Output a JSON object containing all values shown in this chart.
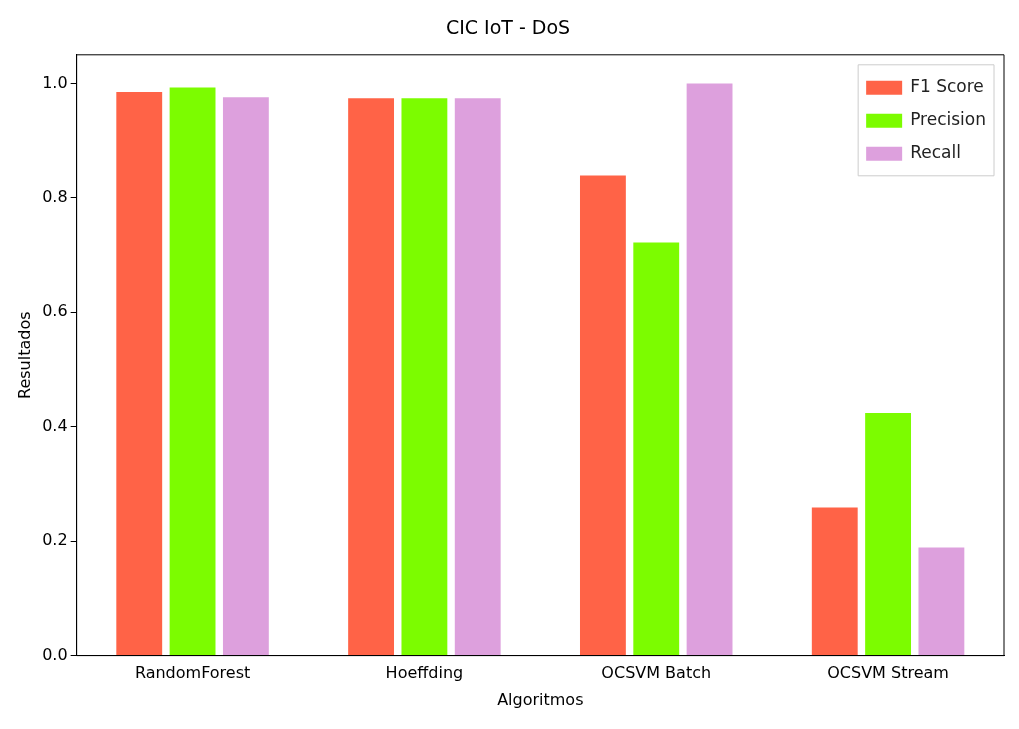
{
  "chart_data": {
    "type": "bar",
    "title": "CIC IoT - DoS",
    "xlabel": "Algoritmos",
    "ylabel": "Resultados",
    "categories": [
      "RandomForest",
      "Hoeffding",
      "OCSVM Batch",
      "OCSVM Stream"
    ],
    "series": [
      {
        "name": "F1 Score",
        "color": "#ff6347",
        "values": [
          0.985,
          0.974,
          0.839,
          0.259
        ]
      },
      {
        "name": "Precision",
        "color": "#7cfc00",
        "values": [
          0.993,
          0.974,
          0.722,
          0.424
        ]
      },
      {
        "name": "Recall",
        "color": "#dda0dd",
        "values": [
          0.976,
          0.974,
          1.0,
          0.189
        ]
      }
    ],
    "ylim": [
      0,
      1.05
    ],
    "yticks": [
      {
        "value": 0,
        "label": "0.0"
      },
      {
        "value": 0.2,
        "label": "0.2"
      },
      {
        "value": 0.4,
        "label": "0.4"
      },
      {
        "value": 0.6,
        "label": "0.6"
      },
      {
        "value": 0.8,
        "label": "0.8"
      },
      {
        "value": 1,
        "label": "1.0"
      }
    ],
    "grid": false,
    "legend": "top right"
  }
}
